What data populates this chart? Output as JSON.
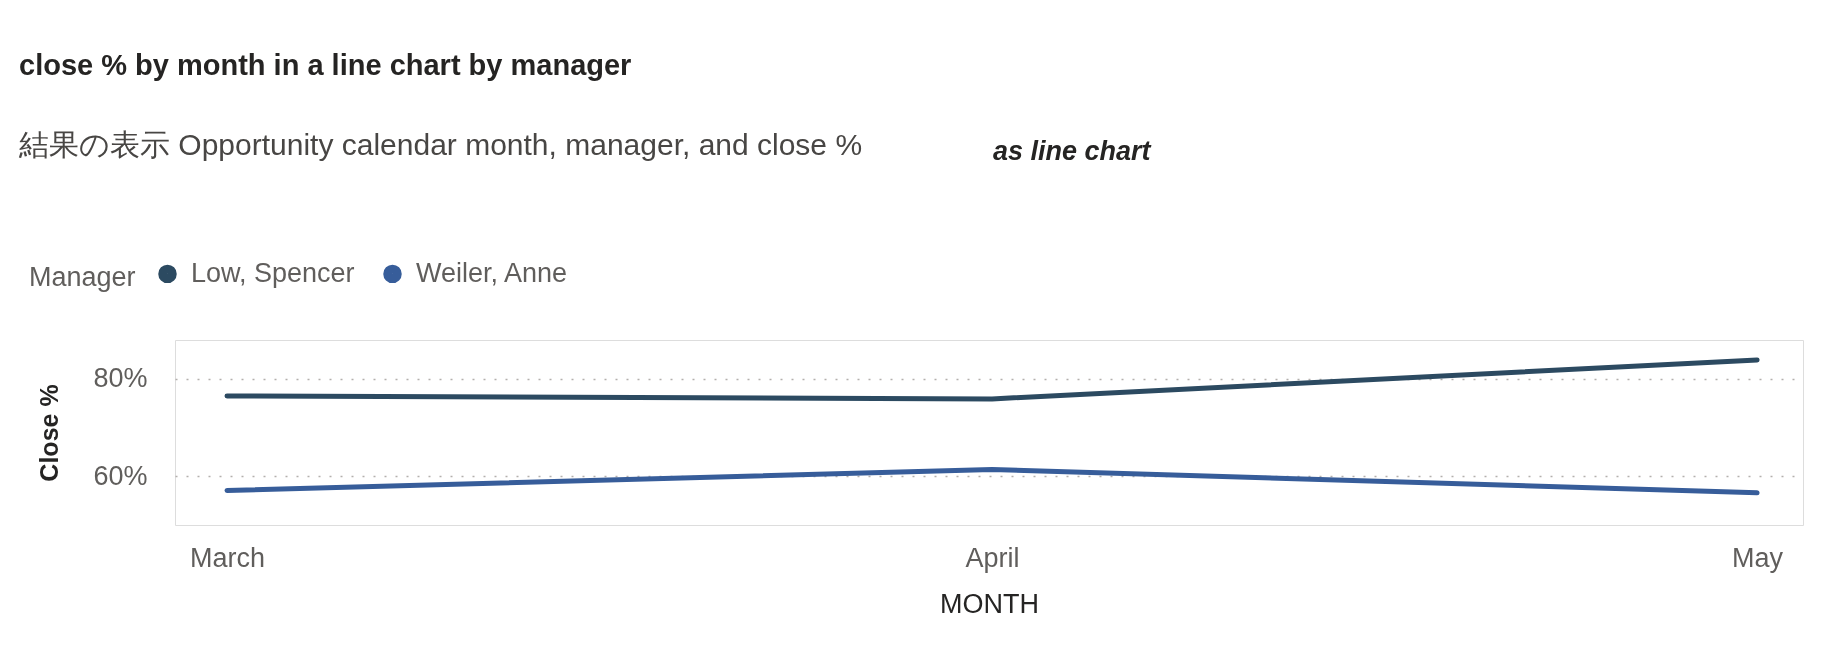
{
  "chart_data": {
    "type": "line",
    "title": "close % by month in a line chart by manager",
    "subtitle": "結果の表示 Opportunity calendar month, manager, and close %",
    "annotations": [
      "as line chart"
    ],
    "xlabel": "MONTH",
    "ylabel": "Close %",
    "legend_title": "Manager",
    "categories": [
      "March",
      "April",
      "May"
    ],
    "series": [
      {
        "name": "Low, Spencer",
        "color": "#2c4a61",
        "values": [
          76.5,
          75.9,
          83.9
        ]
      },
      {
        "name": "Weiler, Anne",
        "color": "#375d9a",
        "values": [
          57.1,
          61.4,
          56.6
        ]
      }
    ],
    "ylim": [
      50,
      88
    ],
    "yticks": [
      {
        "value": 60,
        "label": "60%"
      },
      {
        "value": 80,
        "label": "80%"
      }
    ],
    "grid": "y",
    "legend": "top left",
    "marker": "none",
    "line_style": "solid"
  }
}
